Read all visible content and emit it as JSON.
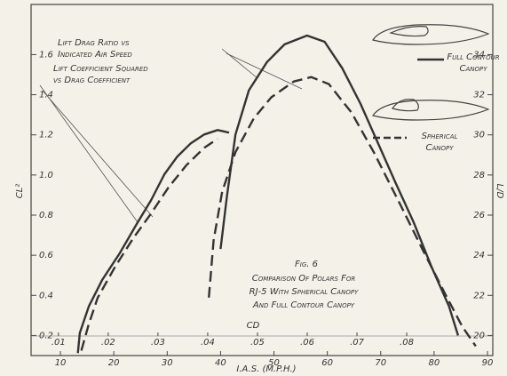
{
  "chart_data": {
    "type": "line",
    "title": "Fig. 6",
    "subtitle": [
      "Comparison Of Polars For",
      "RJ-5 With Spherical Canopy",
      "And Full Contour Canopy"
    ],
    "xlabel": "I.A.S. (M.P.H.)",
    "x2label": "CD",
    "ylabel": "CL²",
    "y2label": "L/D",
    "xlim": [
      4.5,
      91
    ],
    "xticks": [
      10,
      20,
      30,
      40,
      50,
      60,
      70,
      80,
      90
    ],
    "x2lim": [
      0.0045,
      0.0973
    ],
    "x2ticks": [
      {
        "value": 0.01,
        "label": ".01"
      },
      {
        "value": 0.02,
        "label": ".02"
      },
      {
        "value": 0.03,
        "label": ".03"
      },
      {
        "value": 0.04,
        "label": ".04"
      },
      {
        "value": 0.05,
        "label": ".05"
      },
      {
        "value": 0.06,
        "label": ".06"
      },
      {
        "value": 0.07,
        "label": ".07"
      },
      {
        "value": 0.08,
        "label": ".08"
      }
    ],
    "ylim": [
      0.1,
      1.85
    ],
    "yticks": [
      0.2,
      0.4,
      0.6,
      0.8,
      {
        "value": 1,
        "label": "1.0"
      },
      1.2,
      1.4,
      1.6
    ],
    "y2lim": [
      19,
      36.5
    ],
    "y2ticks": [
      20,
      22,
      24,
      26,
      28,
      30,
      32,
      34
    ],
    "grid": false,
    "legend_position": "upper right",
    "annotations": [
      {
        "lines": [
          "Lift Drag Ratio vs",
          "Indicated Air Speed"
        ]
      },
      {
        "lines": [
          "Lift Coefficient Squared",
          "vs Drag Coefficient"
        ]
      }
    ],
    "series": [
      {
        "name": "Full Contour Canopy",
        "color": "#333333",
        "dash": false,
        "xaxis": "x2",
        "x": [
          0.0139,
          0.0143,
          0.0161,
          0.0188,
          0.0223,
          0.0259,
          0.0286,
          0.0313,
          0.0339,
          0.0366,
          0.0393,
          0.042,
          0.0443
        ],
        "values": [
          0.112,
          0.213,
          0.345,
          0.477,
          0.609,
          0.763,
          0.873,
          1.004,
          1.092,
          1.158,
          1.202,
          1.224,
          1.211
        ]
      },
      {
        "name": "Spherical Canopy",
        "color": "#333333",
        "dash": true,
        "xaxis": "x2",
        "x": [
          0.0146,
          0.0161,
          0.0179,
          0.0214,
          0.025,
          0.0286,
          0.0321,
          0.0357,
          0.0393,
          0.042
        ],
        "values": [
          0.125,
          0.257,
          0.389,
          0.543,
          0.684,
          0.807,
          0.938,
          1.048,
          1.136,
          1.18
        ]
      },
      {
        "color": "#333333",
        "dash": false,
        "axis": "y2",
        "x": [
          40.0,
          41.2,
          42.8,
          45.3,
          48.7,
          52.0,
          56.2,
          59.5,
          62.8,
          66.2,
          69.5,
          72.8,
          76.2,
          79.5,
          82.8,
          84.5
        ],
        "values": [
          24.31,
          26.95,
          30.02,
          32.22,
          33.63,
          34.51,
          34.95,
          34.64,
          33.32,
          31.56,
          29.58,
          27.6,
          25.63,
          23.43,
          21.45,
          20.0
        ]
      },
      {
        "color": "#333333",
        "dash": true,
        "axis": "y2",
        "x": [
          37.8,
          38.7,
          40.3,
          42.8,
          46.2,
          49.5,
          53.7,
          57.0,
          60.3,
          64.5,
          68.7,
          73.7,
          77.8,
          82.0,
          85.3,
          87.8
        ],
        "values": [
          21.89,
          24.75,
          27.16,
          29.14,
          30.81,
          31.87,
          32.66,
          32.88,
          32.53,
          31.12,
          29.14,
          26.51,
          24.31,
          22.11,
          20.44,
          19.47
        ]
      }
    ]
  }
}
